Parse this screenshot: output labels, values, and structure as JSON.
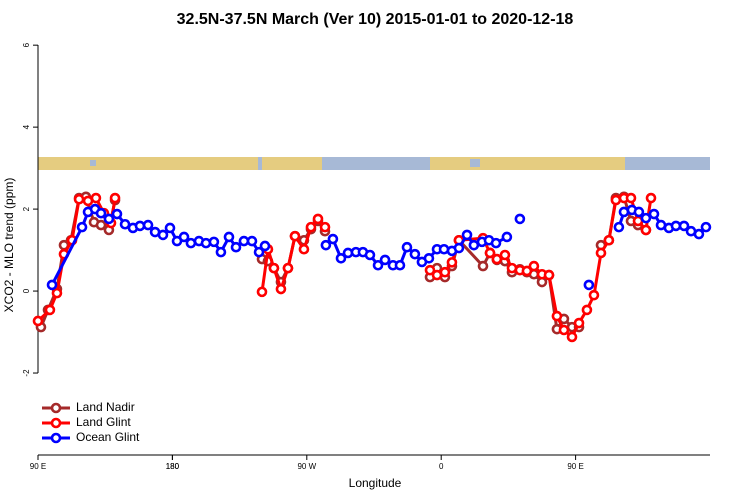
{
  "chart_data": {
    "type": "line",
    "title": "32.5N-37.5N March (Ver 10)   2015-01-01 to 2020-12-18",
    "x_label": "Longitude",
    "y_label": "XCO2 - MLO trend (ppm)",
    "xlim": [
      90,
      540
    ],
    "xticks": [
      {
        "value": 90,
        "label": "90 E"
      },
      180,
      {
        "value": 270,
        "label": "90 W"
      },
      {
        "value": 360,
        "label": "0"
      },
      {
        "value": 450,
        "label": "90 E"
      },
      180.0001
    ],
    "ylim": [
      -4,
      6.37
    ],
    "yticks": [
      -2,
      0,
      2,
      4,
      6
    ],
    "legend": "bottom-left",
    "series": [
      {
        "name": "Land Nadir",
        "color": "#a52a2a",
        "x": [
          92.0,
          96.7,
          102.7,
          107.4,
          112.1,
          117.5,
          122.1,
          127.5,
          132.2,
          137.5,
          141.6,
          null,
          240.0,
          244.0,
          248.0,
          252.7,
          257.4,
          262.1,
          268.1,
          272.8,
          277.5,
          282.2,
          null,
          352.5,
          357.2,
          362.5,
          367.2,
          371.9,
          388.0,
          392.7,
          397.3,
          402.7,
          407.4,
          412.7,
          417.4,
          422.1,
          427.5,
          432.2,
          437.5,
          442.2,
          447.6,
          452.3,
          null,
          467.0,
          472.3,
          477.0,
          482.4,
          487.1,
          491.8,
          497.1
        ],
        "values": [
          -0.88,
          -0.46,
          0.05,
          1.12,
          1.24,
          2.27,
          2.3,
          1.68,
          1.61,
          1.49,
          2.22,
          null,
          0.78,
          0.73,
          0.56,
          0.22,
          0.56,
          1.34,
          1.24,
          1.51,
          1.71,
          1.46,
          null,
          0.34,
          0.56,
          0.34,
          0.61,
          1.24,
          0.61,
          0.93,
          0.76,
          0.73,
          0.46,
          0.53,
          0.46,
          0.41,
          0.22,
          0.39,
          -0.93,
          -0.68,
          -0.88,
          -0.88,
          null,
          1.12,
          1.24,
          2.27,
          2.3,
          1.71,
          1.61,
          1.49
        ]
      },
      {
        "name": "Land Glint",
        "color": "#ff0000",
        "x": [
          90,
          98.0,
          102.7,
          107.4,
          112.8,
          117.5,
          123.5,
          128.8,
          134.2,
          138.9,
          141.6,
          null,
          240.0,
          244.0,
          248.0,
          252.7,
          257.4,
          262.1,
          268.1,
          272.8,
          277.5,
          282.2,
          null,
          352.5,
          357.2,
          362.5,
          367.2,
          371.9,
          388.0,
          392.7,
          397.3,
          402.7,
          407.4,
          412.7,
          417.4,
          422.1,
          427.5,
          432.2,
          437.5,
          442.2,
          447.6,
          452.3,
          457.6,
          462.3,
          467.0,
          472.3,
          477.0,
          482.4,
          487.1,
          491.8,
          497.1,
          500.5
        ],
        "values": [
          -0.73,
          -0.46,
          -0.05,
          0.9,
          1.24,
          2.24,
          2.2,
          2.27,
          1.9,
          1.66,
          2.27,
          null,
          -0.02,
          1.02,
          0.56,
          0.05,
          0.56,
          1.34,
          1.02,
          1.56,
          1.76,
          1.56,
          null,
          0.51,
          0.39,
          0.46,
          0.7,
          1.24,
          1.29,
          0.93,
          0.78,
          0.88,
          0.56,
          0.51,
          0.49,
          0.61,
          0.41,
          0.39,
          -0.61,
          -0.95,
          -1.12,
          -0.78,
          -0.46,
          -0.1,
          0.93,
          1.24,
          2.22,
          2.27,
          2.27,
          1.71,
          1.49,
          2.27
        ]
      },
      {
        "name": "Ocean Glint",
        "color": "#0000ff",
        "x": [
          99.4,
          119.5,
          123.5,
          128.2,
          132.2,
          137.5,
          142.9,
          148.3,
          153.6,
          158.3,
          163.7,
          168.4,
          173.7,
          178.4,
          183.1,
          187.8,
          192.4,
          197.8,
          202.5,
          207.8,
          212.5,
          217.9,
          222.6,
          227.9,
          233.3,
          238.0,
          242.0,
          null,
          282.8,
          287.5,
          292.9,
          297.6,
          302.9,
          307.6,
          312.3,
          317.7,
          322.4,
          327.7,
          332.4,
          337.1,
          342.4,
          347.1,
          351.8,
          357.2,
          361.9,
          367.2,
          371.9,
          377.3,
          381.9,
          387.3,
          392.0,
          396.7,
          404.0,
          null,
          412.7,
          null,
          458.9,
          null,
          479.0,
          482.4,
          487.7,
          492.4,
          497.1,
          502.5,
          507.2,
          512.5,
          517.2,
          522.6,
          527.3,
          532.6,
          537.3
        ],
        "values": [
          0.15,
          1.56,
          1.93,
          2.0,
          1.9,
          1.76,
          1.88,
          1.63,
          1.54,
          1.59,
          1.61,
          1.44,
          1.37,
          1.54,
          1.22,
          1.32,
          1.17,
          1.22,
          1.17,
          1.2,
          0.95,
          1.32,
          1.07,
          1.22,
          1.22,
          0.95,
          1.1,
          null,
          1.12,
          1.27,
          0.8,
          0.93,
          0.95,
          0.95,
          0.88,
          0.63,
          0.76,
          0.63,
          0.63,
          1.07,
          0.9,
          0.71,
          0.8,
          1.02,
          1.02,
          0.98,
          1.05,
          1.37,
          1.12,
          1.2,
          1.24,
          1.17,
          1.32,
          null,
          1.76,
          null,
          0.15,
          null,
          1.56,
          1.93,
          1.98,
          1.93,
          1.78,
          1.88,
          1.61,
          1.54,
          1.59,
          1.59,
          1.46,
          1.39,
          1.56
        ]
      }
    ]
  }
}
